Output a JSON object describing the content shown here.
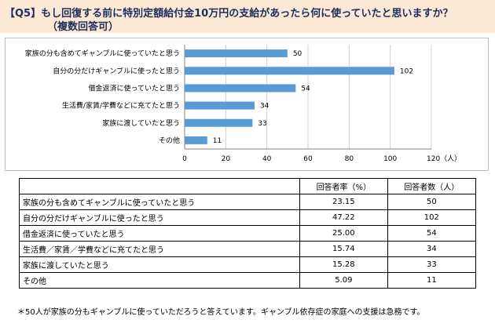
{
  "title": {
    "line1": "【Q5】もし回復する前に特別定額給付金10万円の支給があったら何に使っていたと思いますか？",
    "line2": "（複数回答可）"
  },
  "chart_data": {
    "type": "bar",
    "orientation": "horizontal",
    "categories": [
      "家族の分も含めてギャンブルに使っていたと思う",
      "自分の分だけギャンブルに使ったと思う",
      "借金返済に使っていたと思う",
      "生活費/家賃/学費などに充てたと思う",
      "家族に渡していたと思う",
      "その他"
    ],
    "values": [
      50,
      102,
      54,
      34,
      33,
      11
    ],
    "xlim": [
      0,
      120
    ],
    "xticks": [
      "0",
      "20",
      "40",
      "60",
      "80",
      "100",
      "120（人）"
    ],
    "xtick_values": [
      0,
      20,
      40,
      60,
      80,
      100,
      120
    ],
    "bar_color": "#5b9bd5",
    "grid": "vertical"
  },
  "table": {
    "headers": [
      "",
      "回答者率（%）",
      "回答者数（人）"
    ],
    "rows": [
      {
        "label": "家族の分も含めてギャンブルに使っていたと思う",
        "rate": "23.15",
        "count": "50"
      },
      {
        "label": "自分の分だけギャンブルに使ったと思う",
        "rate": "47.22",
        "count": "102"
      },
      {
        "label": "借金返済に使っていたと思う",
        "rate": "25.00",
        "count": "54"
      },
      {
        "label": "生活費／家賃／学費などに充てたと思う",
        "rate": "15.74",
        "count": "34"
      },
      {
        "label": "家族に渡していたと思う",
        "rate": "15.28",
        "count": "33"
      },
      {
        "label": "その他",
        "rate": "5.09",
        "count": "11"
      }
    ]
  },
  "footnote": "＊50人が家族の分もギャンブルに使っていただろうと答えています。ギャンブル依存症の家庭への支援は急務です。"
}
